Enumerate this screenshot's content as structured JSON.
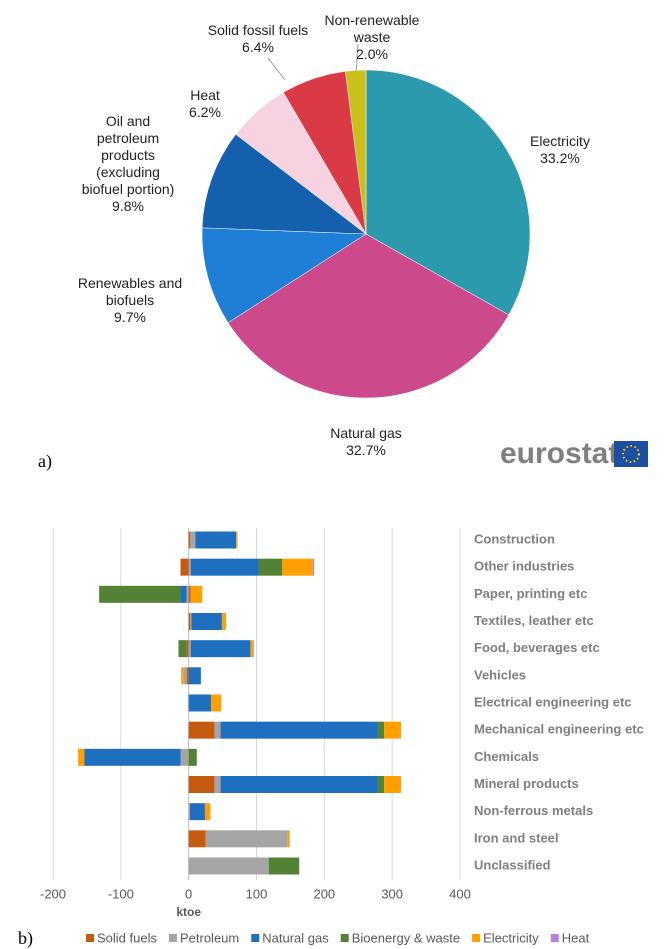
{
  "chart_data": [
    {
      "type": "pie",
      "panel_label": "a)",
      "logo": "eurostat",
      "categories": [
        "Electricity",
        "Natural gas",
        "Renewables and biofuels",
        "Oil and petroleum products (excluding biofuel portion)",
        "Heat",
        "Solid fossil fuels",
        "Non-renewable waste"
      ],
      "values": [
        33.2,
        32.7,
        9.7,
        9.8,
        6.2,
        6.4,
        2.0
      ],
      "value_labels": [
        "33.2%",
        "32.7%",
        "9.7%",
        "9.8%",
        "6.2%",
        "6.4%",
        "2.0%"
      ],
      "colors": [
        "#2b9aac",
        "#cc4a8b",
        "#1f7fd6",
        "#1460ad",
        "#f7d3e2",
        "#d93a45",
        "#c9bf1a"
      ]
    },
    {
      "type": "bar",
      "orientation": "horizontal",
      "stacked": true,
      "panel_label": "b)",
      "categories": [
        "Construction",
        "Other industries",
        "Paper, printing etc",
        "Textiles, leather etc",
        "Food, beverages etc",
        "Vehicles",
        "Electrical engineering etc",
        "Mechanical engineering etc",
        "Chemicals",
        "Mineral products",
        "Non-ferrous metals",
        "Iron and steel",
        "Unclassified"
      ],
      "series": [
        {
          "name": "Solid fuels",
          "color": "#c55a11",
          "values": [
            2,
            -12,
            3,
            2,
            -3,
            -3,
            0,
            38,
            0,
            38,
            0,
            25,
            0
          ]
        },
        {
          "name": "Petroleum",
          "color": "#a5a5a5",
          "values": [
            8,
            3,
            -3,
            2,
            3,
            -5,
            0,
            9,
            -12,
            9,
            2,
            121,
            118
          ]
        },
        {
          "name": "Natural gas",
          "color": "#1f6fbf",
          "values": [
            60,
            100,
            -9,
            45,
            88,
            18,
            33,
            232,
            -142,
            232,
            22,
            0,
            0
          ]
        },
        {
          "name": "Bioenergy & waste",
          "color": "#548235",
          "values": [
            0,
            35,
            -120,
            0,
            -12,
            0,
            0,
            9,
            12,
            9,
            0,
            0,
            45
          ]
        },
        {
          "name": "Electricity",
          "color": "#ffa000",
          "values": [
            2,
            45,
            17,
            6,
            4,
            -3,
            15,
            25,
            -9,
            25,
            8,
            3,
            0
          ]
        },
        {
          "name": "Heat",
          "color": "#b681d9",
          "values": [
            0,
            2,
            0,
            0,
            1,
            0,
            0,
            0,
            0,
            0,
            0,
            0,
            0
          ]
        }
      ],
      "xlim": [
        -200,
        400
      ],
      "xticks": [
        -200,
        -100,
        0,
        100,
        200,
        300,
        400
      ],
      "xlabel": "ktoe",
      "grid": true,
      "legend": "bottom"
    }
  ]
}
